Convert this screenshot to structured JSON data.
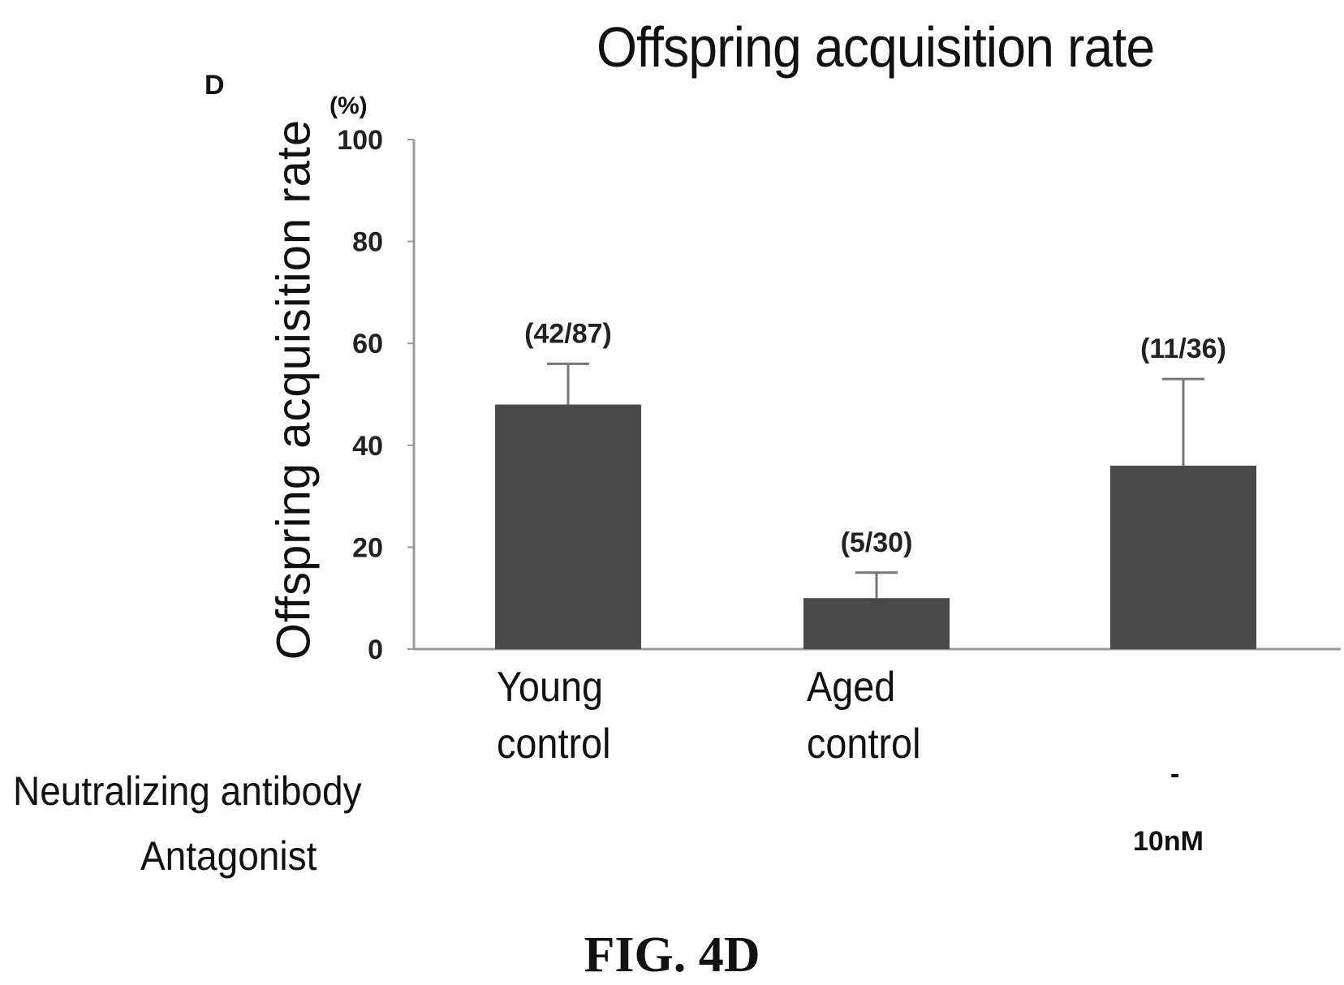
{
  "panel_letter": "D",
  "figure_label": "FIG. 4D",
  "colors": {
    "bar": "#4a4a4a",
    "axis": "#9a9a9a",
    "error_bar": "#777777"
  },
  "chart_data": {
    "type": "bar",
    "title": "Offspring acquisition rate",
    "ylabel": "Offspring acquisition rate",
    "yunit": "(%)",
    "ylim": [
      0,
      100
    ],
    "yticks": [
      0,
      20,
      40,
      60,
      80,
      100
    ],
    "grid": false,
    "legend": "none",
    "categories": [
      "Young control",
      "Aged control",
      ""
    ],
    "category_lines": [
      [
        "Young",
        "control"
      ],
      [
        "Aged",
        "control"
      ],
      []
    ],
    "values": [
      48,
      10,
      36
    ],
    "error": [
      8,
      5,
      17
    ],
    "data_labels": [
      "(42/87)",
      "(5/30)",
      "(11/36)"
    ]
  },
  "condition_rows": [
    {
      "label": "Neutralizing antibody",
      "values": [
        "",
        "",
        "-"
      ]
    },
    {
      "label": "Antagonist",
      "values": [
        "",
        "",
        "10nM"
      ]
    }
  ]
}
